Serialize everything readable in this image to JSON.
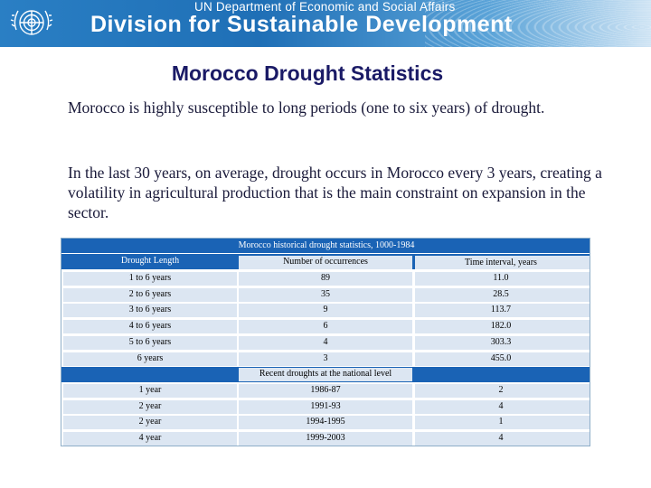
{
  "header": {
    "org_line": "UN Department of Economic and Social Affairs",
    "division": "Division for Sustainable Development"
  },
  "title": "Morocco Drought Statistics",
  "paragraphs": [
    "Morocco is highly susceptible to long periods (one to six years) of drought.",
    "In the  last  30 years, on average, drought occurs in Morocco every 3  years, creating a volatility in agricultural production that is the main constraint on expansion in the sector."
  ],
  "table": {
    "caption": "Morocco historical drought statistics, 1000-1984",
    "columns": [
      "Drought Length",
      "Number of occurrences",
      "Time interval, years"
    ],
    "rows": [
      [
        "1 to 6 years",
        "89",
        "11.0"
      ],
      [
        "2 to 6 years",
        "35",
        "28.5"
      ],
      [
        "3 to 6 years",
        "9",
        "113.7"
      ],
      [
        "4 to 6 years",
        "6",
        "182.0"
      ],
      [
        "5 to 6 years",
        "4",
        "303.3"
      ],
      [
        "6 years",
        "3",
        "455.0"
      ]
    ],
    "recent_caption": "Recent droughts at the national level",
    "recent_rows": [
      [
        "1 year",
        "1986-87",
        "2"
      ],
      [
        "2 year",
        "1991-93",
        "4"
      ],
      [
        "2 year",
        "1994-1995",
        "1"
      ],
      [
        "4 year",
        "1999-2003",
        "4"
      ]
    ]
  },
  "colors": {
    "banner": "#1f6fb6",
    "table_band": "#1a63b5",
    "row_shade": "#dce6f2",
    "title": "#1a1a66"
  }
}
